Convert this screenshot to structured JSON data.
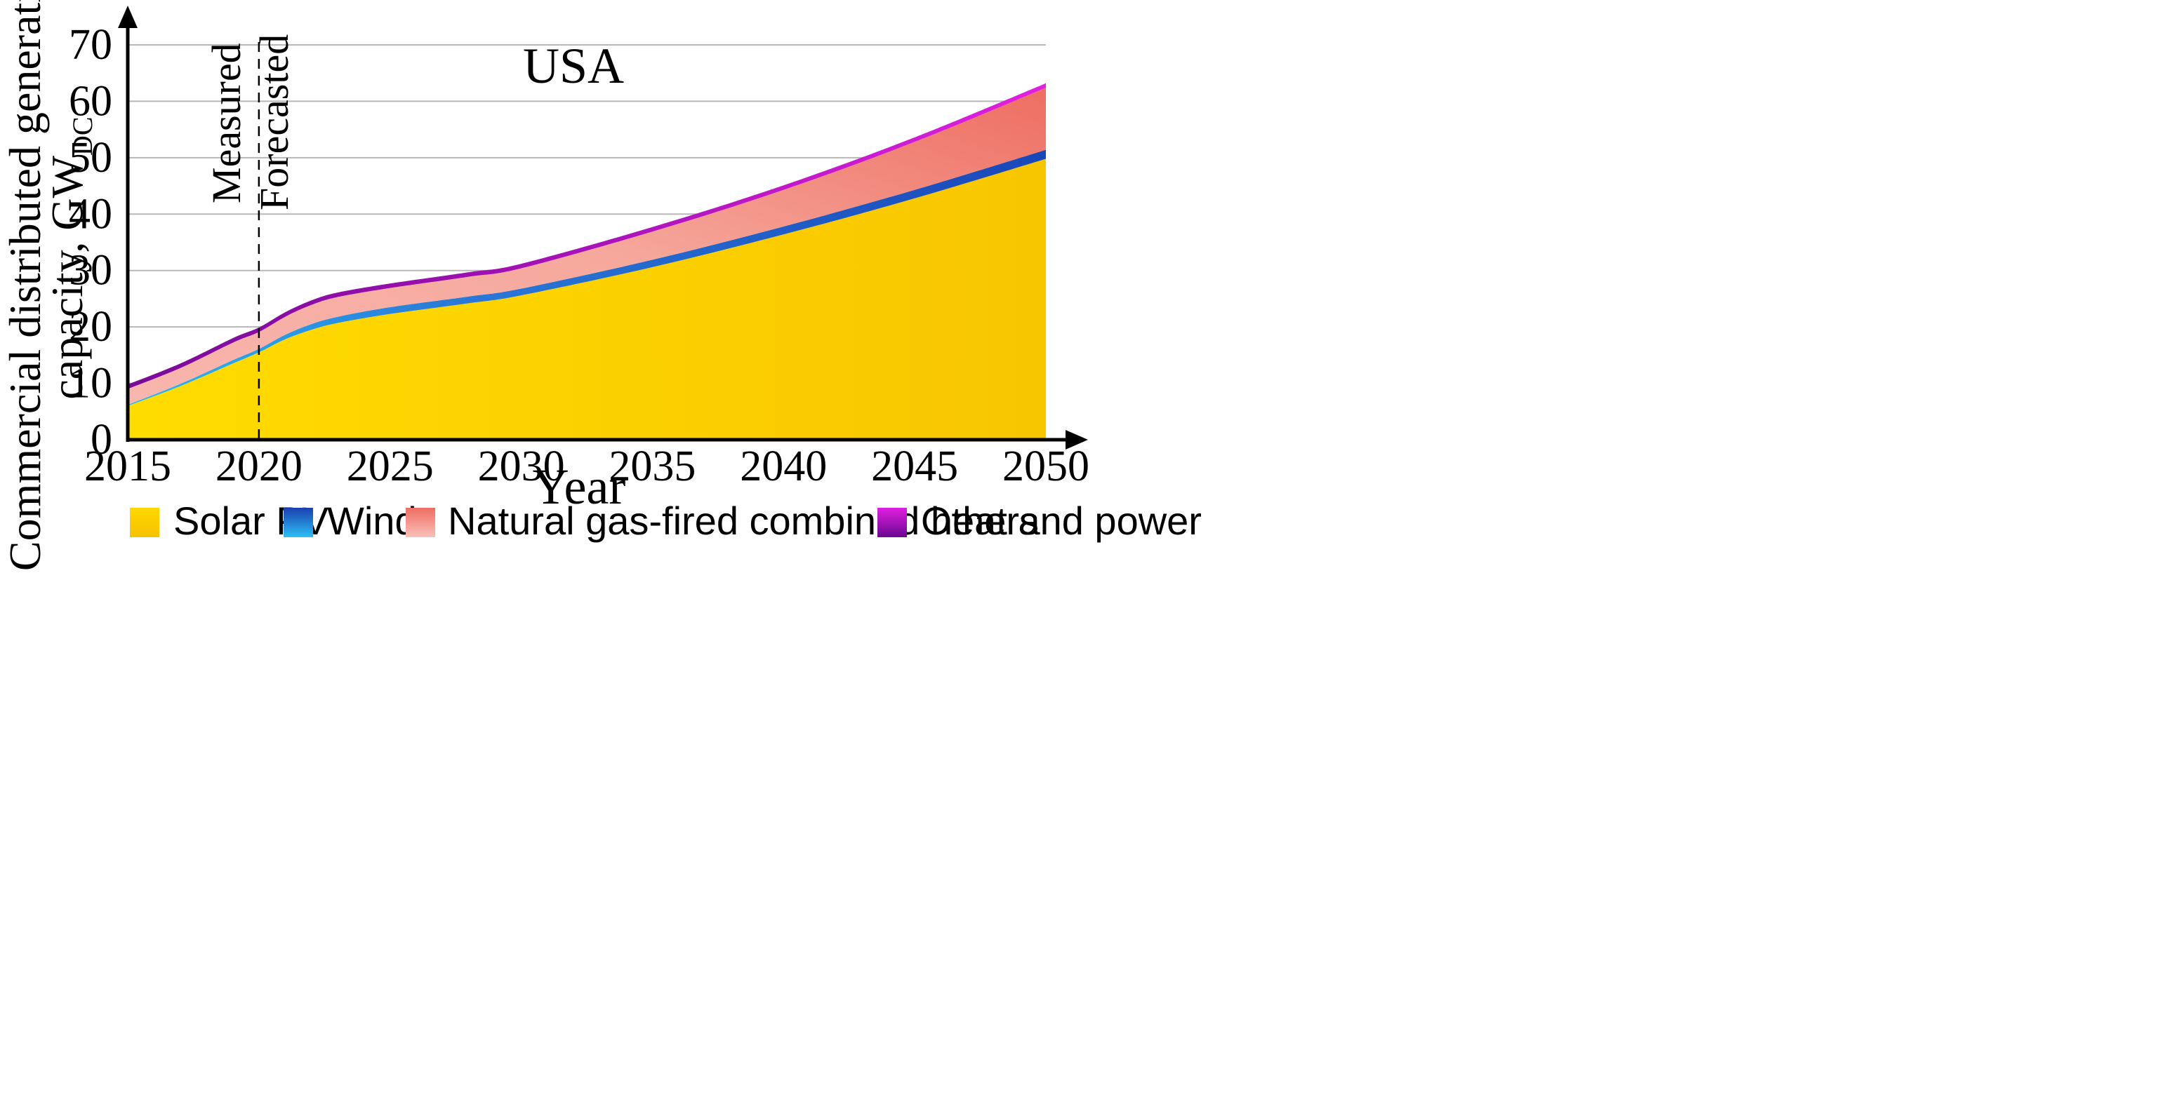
{
  "chart_data": {
    "type": "area",
    "stacked": true,
    "title": "USA",
    "xlabel": "Year",
    "ylabel": {
      "line1": "Commercial distributed generation",
      "line2_main": "capacity, GW",
      "line2_sub": "DC"
    },
    "xlim": [
      2015,
      2050
    ],
    "ylim": [
      0,
      70
    ],
    "xticks": [
      2015,
      2020,
      2025,
      2030,
      2035,
      2040,
      2045,
      2050
    ],
    "yticks": [
      0,
      10,
      20,
      30,
      40,
      50,
      60,
      70
    ],
    "grid": true,
    "x": [
      2015,
      2017,
      2019,
      2020,
      2021,
      2022,
      2023,
      2025,
      2028,
      2030,
      2035,
      2040,
      2045,
      2050
    ],
    "series": [
      {
        "name": "Solar PV",
        "values": [
          6.0,
          9.5,
          13.5,
          15.5,
          17.8,
          19.5,
          20.7,
          22.3,
          24.2,
          25.6,
          30.6,
          36.4,
          42.8,
          49.8
        ]
      },
      {
        "name": "Wind",
        "values": [
          0.2,
          0.4,
          0.6,
          0.6,
          0.8,
          1.0,
          1.1,
          1.2,
          1.2,
          1.2,
          1.3,
          1.4,
          1.5,
          1.6
        ]
      },
      {
        "name": "Natural gas-fired combined heat and power",
        "values": [
          2.8,
          2.8,
          3.1,
          3.0,
          3.2,
          3.4,
          3.5,
          3.4,
          3.5,
          3.6,
          5.0,
          6.5,
          8.5,
          11.0
        ]
      },
      {
        "name": "Others",
        "values": [
          0.8,
          0.8,
          0.8,
          0.8,
          0.8,
          0.8,
          0.8,
          0.8,
          0.8,
          0.8,
          0.8,
          0.8,
          0.8,
          0.8
        ]
      }
    ],
    "annotations": {
      "divider_year": 2020,
      "left_label": "Measured",
      "right_label": "Forecasted"
    },
    "legend_position": "bottom",
    "colors": {
      "Solar PV": [
        "#ffd400",
        "#f8c400"
      ],
      "Wind": [
        "#1a47b8",
        "#2ab8f0"
      ],
      "Natural gas-fired combined heat and power": [
        "#f07868",
        "#f8bcb4"
      ],
      "Others": [
        "#e020e0",
        "#7a0a98"
      ]
    }
  }
}
